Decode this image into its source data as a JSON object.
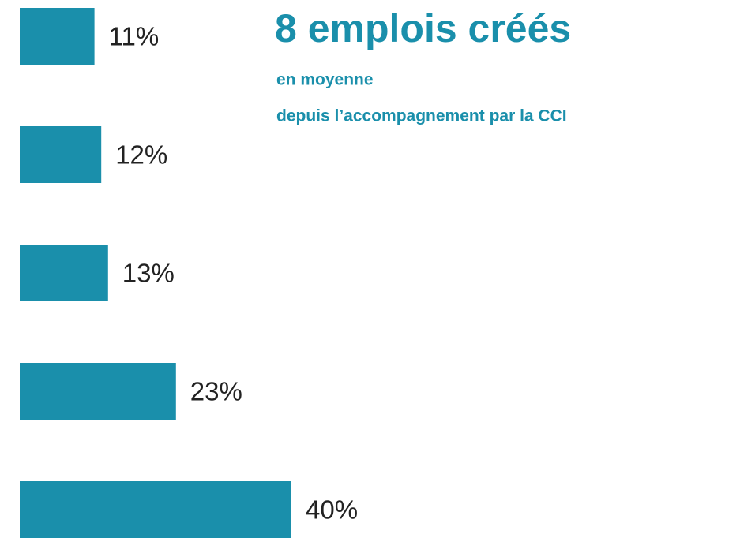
{
  "chart_data": {
    "type": "bar",
    "orientation": "horizontal",
    "title": "8 emplois créés",
    "subtitle": [
      "en moyenne",
      "depuis l’accompagnement par la CCI"
    ],
    "categories": [
      null,
      null,
      null,
      null,
      null
    ],
    "values": [
      11,
      12,
      13,
      23,
      40
    ],
    "value_labels": [
      "11%",
      "12%",
      "13%",
      "23%",
      "40%"
    ],
    "color": "#1a8fab"
  }
}
